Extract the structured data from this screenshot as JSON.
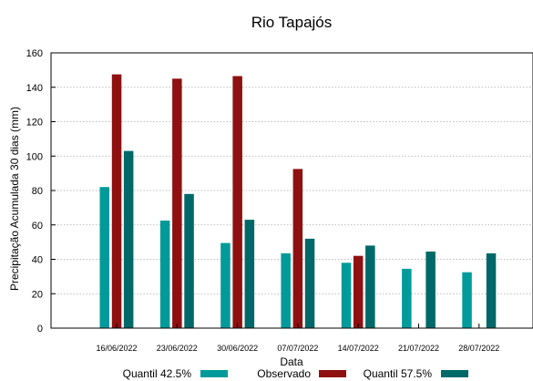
{
  "chart_data": {
    "type": "bar",
    "title": "Rio Tapajós",
    "xlabel": "Data",
    "ylabel": "Precipitação Acumulada 30 dias (mm)",
    "ylim": [
      0,
      160
    ],
    "yticks": [
      0,
      20,
      40,
      60,
      80,
      100,
      120,
      140,
      160
    ],
    "grid": true,
    "legend_position": "bottom",
    "categories": [
      "16/06/2022",
      "23/06/2022",
      "30/06/2022",
      "07/07/2022",
      "14/07/2022",
      "21/07/2022",
      "28/07/2022"
    ],
    "series": [
      {
        "name": "Quantil 42.5%",
        "color": "#009a9a",
        "values": [
          82,
          62.5,
          49.5,
          43.5,
          38,
          34.5,
          32.5
        ]
      },
      {
        "name": "Observado",
        "color": "#8f1010",
        "values": [
          147.5,
          145,
          146.5,
          92.5,
          42,
          null,
          null
        ]
      },
      {
        "name": "Quantil 57.5%",
        "color": "#006868",
        "values": [
          103,
          78,
          63,
          52,
          48,
          44.5,
          43.5
        ]
      }
    ]
  }
}
